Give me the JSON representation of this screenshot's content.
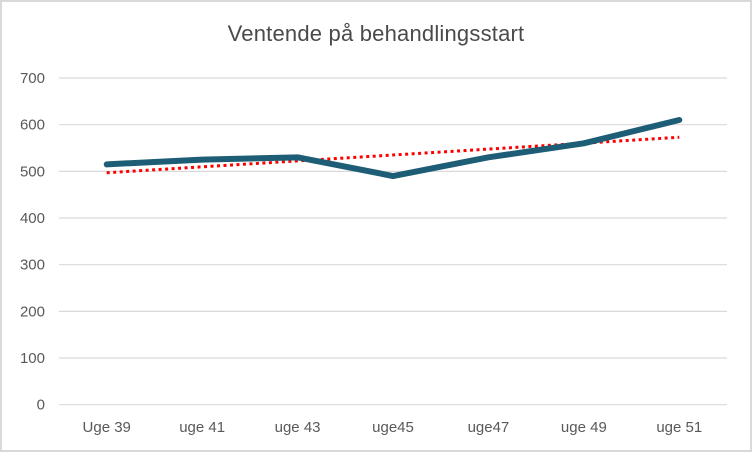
{
  "chart": {
    "title": "Ventende på behandlingsstart"
  },
  "chart_data": {
    "type": "line",
    "title": "Ventende på behandlingsstart",
    "categories": [
      "Uge 39",
      "uge 41",
      "uge 43",
      "uge45",
      "uge47",
      "uge 49",
      "uge 51"
    ],
    "series": [
      {
        "values": [
          515,
          525,
          530,
          490,
          530,
          560,
          610
        ],
        "color": "#1d5d75",
        "line_width": 6
      }
    ],
    "trendline": {
      "type": "linear",
      "start_value": 497,
      "end_value": 573,
      "color": "#ff0000",
      "style": "dotted",
      "line_width": 3
    },
    "ylabel": "",
    "xlabel": "",
    "ylim": [
      0,
      700
    ],
    "yticks": [
      0,
      100,
      200,
      300,
      400,
      500,
      600,
      700
    ],
    "grid": true,
    "gridline_color": "#d9d9d9",
    "tick_label_color": "#595959",
    "title_color": "#4a4a4a",
    "legend": "none",
    "background": "#ffffff",
    "border_color": "#d9d9d9"
  }
}
